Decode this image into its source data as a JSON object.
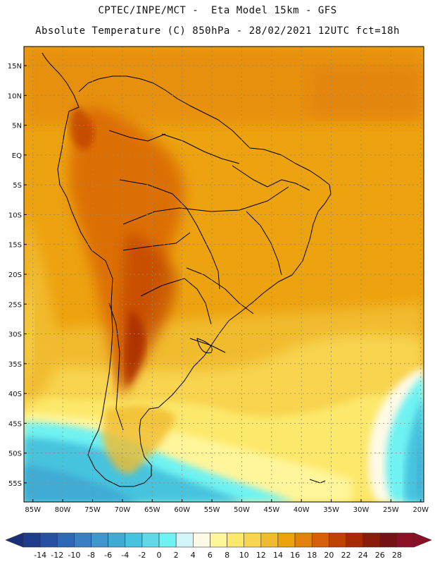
{
  "header": {
    "line1": "CPTEC/INPE/MCT -  Eta Model 15km - GFS",
    "line2": "Absolute Temperature (C) 850hPa - 28/02/2021 12UTC fct=18h"
  },
  "map": {
    "lat_range": [
      18.2,
      -58.2
    ],
    "lon_range": [
      -86.5,
      -19.5
    ],
    "lat_ticks": [
      {
        "value": 15,
        "label": "15N"
      },
      {
        "value": 10,
        "label": "10N"
      },
      {
        "value": 5,
        "label": "5N"
      },
      {
        "value": 0,
        "label": "EQ"
      },
      {
        "value": -5,
        "label": "5S"
      },
      {
        "value": -10,
        "label": "10S"
      },
      {
        "value": -15,
        "label": "15S"
      },
      {
        "value": -20,
        "label": "20S"
      },
      {
        "value": -25,
        "label": "25S"
      },
      {
        "value": -30,
        "label": "30S"
      },
      {
        "value": -35,
        "label": "35S"
      },
      {
        "value": -40,
        "label": "40S"
      },
      {
        "value": -45,
        "label": "45S"
      },
      {
        "value": -50,
        "label": "50S"
      },
      {
        "value": -55,
        "label": "55S"
      }
    ],
    "lon_ticks": [
      {
        "value": -85,
        "label": "85W"
      },
      {
        "value": -80,
        "label": "80W"
      },
      {
        "value": -75,
        "label": "75W"
      },
      {
        "value": -70,
        "label": "70W"
      },
      {
        "value": -65,
        "label": "65W"
      },
      {
        "value": -60,
        "label": "60W"
      },
      {
        "value": -55,
        "label": "55W"
      },
      {
        "value": -50,
        "label": "50W"
      },
      {
        "value": -45,
        "label": "45W"
      },
      {
        "value": -40,
        "label": "40W"
      },
      {
        "value": -35,
        "label": "35W"
      },
      {
        "value": -30,
        "label": "30W"
      },
      {
        "value": -25,
        "label": "25W"
      },
      {
        "value": -20,
        "label": "20W"
      }
    ]
  },
  "colorbar": {
    "labels": [
      "-14",
      "-12",
      "-10",
      "-8",
      "-6",
      "-4",
      "-2",
      "0",
      "2",
      "4",
      "6",
      "8",
      "10",
      "12",
      "14",
      "16",
      "18",
      "20",
      "22",
      "24",
      "26",
      "28"
    ],
    "colors": [
      "#1e3c8c",
      "#2850a0",
      "#2e67b4",
      "#3a7fc4",
      "#3f95cc",
      "#3fabd4",
      "#46c3de",
      "#5fd9e8",
      "#6ff2f2",
      "#d2f5fa",
      "#fffae6",
      "#fff59a",
      "#fce86a",
      "#f8d44f",
      "#f1bb2f",
      "#eda20f",
      "#e3820a",
      "#d75e06",
      "#c04203",
      "#a72a05",
      "#8a1c0c",
      "#751216",
      "#8b0f27"
    ],
    "under_color": "#1a2f7a",
    "over_color": "#8b0f27"
  }
}
